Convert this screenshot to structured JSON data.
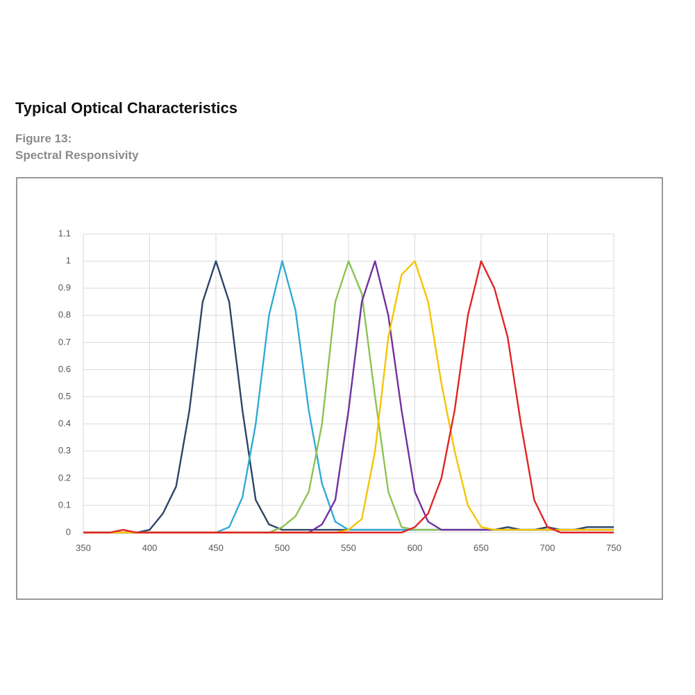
{
  "heading": "Typical Optical Characteristics",
  "figure_label": "Figure 13:",
  "figure_caption": "Spectral Responsivity",
  "chart_data": {
    "type": "line",
    "x": [
      350,
      360,
      370,
      380,
      390,
      400,
      410,
      420,
      430,
      440,
      450,
      460,
      470,
      480,
      490,
      500,
      510,
      520,
      530,
      540,
      550,
      560,
      570,
      580,
      590,
      600,
      610,
      620,
      630,
      640,
      650,
      660,
      670,
      680,
      690,
      700,
      710,
      720,
      730,
      740,
      750
    ],
    "xlim": [
      350,
      750
    ],
    "xticks": [
      350,
      400,
      450,
      500,
      550,
      600,
      650,
      700,
      750
    ],
    "ylim": [
      0,
      1.1
    ],
    "yticks": [
      0,
      0.1,
      0.2,
      0.3,
      0.4,
      0.5,
      0.6,
      0.7,
      0.8,
      0.9,
      1,
      1.1
    ],
    "grid": true,
    "series": [
      {
        "color": "#2b4566",
        "values": [
          0,
          0,
          0,
          0,
          0,
          0.01,
          0.07,
          0.17,
          0.45,
          0.85,
          1,
          0.85,
          0.45,
          0.12,
          0.03,
          0.01,
          0.01,
          0.01,
          0.01,
          0.01,
          0.01,
          0.01,
          0.01,
          0.01,
          0.01,
          0.01,
          0.01,
          0.01,
          0.01,
          0.01,
          0.01,
          0.01,
          0.02,
          0.01,
          0.01,
          0.02,
          0.01,
          0.01,
          0.02,
          0.02,
          0.02
        ]
      },
      {
        "color": "#2eaad6",
        "values": [
          0,
          0,
          0,
          0,
          0,
          0,
          0,
          0,
          0,
          0,
          0,
          0.02,
          0.13,
          0.4,
          0.8,
          1,
          0.82,
          0.45,
          0.18,
          0.04,
          0.01,
          0.01,
          0.01,
          0.01,
          0.01,
          0.01,
          0.01,
          0.01,
          0.01,
          0.01,
          0.01,
          0.01,
          0.01,
          0.01,
          0.01,
          0.01,
          0.01,
          0.01,
          0.01,
          0.01,
          0.01
        ]
      },
      {
        "color": "#8dc253",
        "values": [
          0,
          0,
          0,
          0,
          0,
          0,
          0,
          0,
          0,
          0,
          0,
          0,
          0,
          0,
          0,
          0.02,
          0.06,
          0.15,
          0.4,
          0.85,
          1,
          0.88,
          0.5,
          0.15,
          0.02,
          0.01,
          0.01,
          0.01,
          0.01,
          0.01,
          0.01,
          0.01,
          0.01,
          0.01,
          0.01,
          0.01,
          0.01,
          0.01,
          0.01,
          0.01,
          0.01
        ]
      },
      {
        "color": "#7030a0",
        "values": [
          0,
          0,
          0,
          0,
          0,
          0,
          0,
          0,
          0,
          0,
          0,
          0,
          0,
          0,
          0,
          0,
          0,
          0,
          0.03,
          0.12,
          0.45,
          0.85,
          1,
          0.8,
          0.45,
          0.15,
          0.04,
          0.01,
          0.01,
          0.01,
          0.01,
          0.01,
          0.01,
          0.01,
          0.01,
          0.01,
          0.01,
          0.01,
          0.01,
          0.01,
          0.01
        ]
      },
      {
        "color": "#f5c400",
        "values": [
          0,
          0,
          0,
          0,
          0,
          0,
          0,
          0,
          0,
          0,
          0,
          0,
          0,
          0,
          0,
          0,
          0,
          0,
          0,
          0,
          0.01,
          0.05,
          0.3,
          0.72,
          0.95,
          1,
          0.85,
          0.55,
          0.3,
          0.1,
          0.02,
          0.01,
          0.01,
          0.01,
          0.01,
          0.01,
          0.01,
          0.01,
          0.01,
          0.01,
          0.01
        ]
      },
      {
        "color": "#e02424",
        "values": [
          0,
          0,
          0,
          0.01,
          0,
          0,
          0,
          0,
          0,
          0,
          0,
          0,
          0,
          0,
          0,
          0,
          0,
          0,
          0,
          0,
          0,
          0,
          0,
          0,
          0,
          0.02,
          0.07,
          0.2,
          0.45,
          0.8,
          1,
          0.9,
          0.72,
          0.4,
          0.12,
          0.02,
          0,
          0,
          0,
          0,
          0
        ]
      }
    ]
  }
}
